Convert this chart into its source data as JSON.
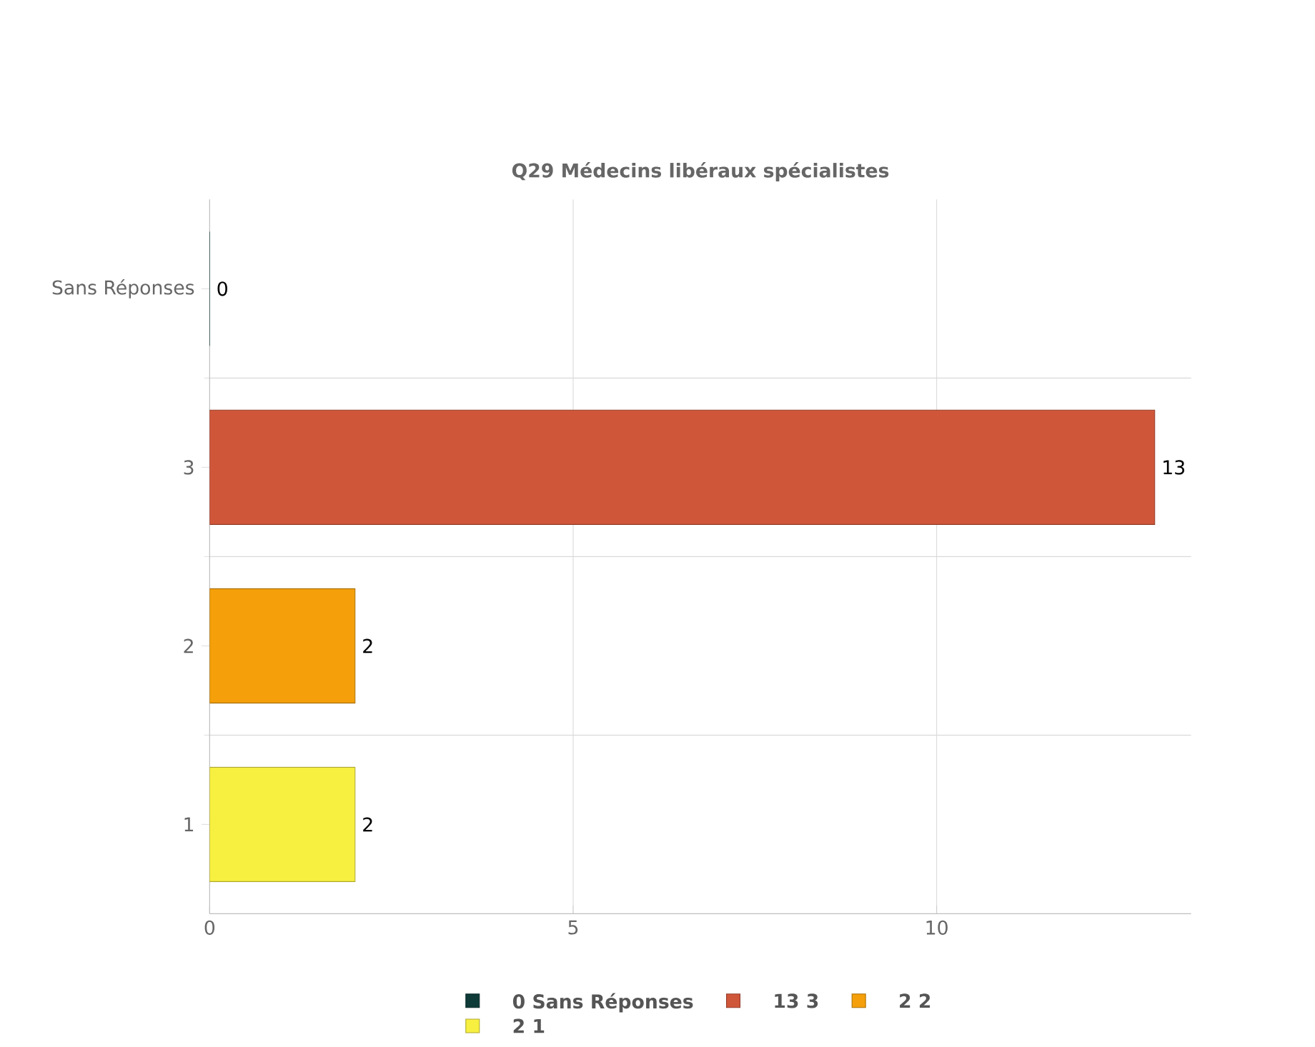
{
  "chart_data": {
    "type": "bar",
    "orientation": "horizontal",
    "title": "Q29 Médecins libéraux spécialistes",
    "categories": [
      "Sans Réponses",
      "3",
      "2",
      "1"
    ],
    "series": [
      {
        "name": "0 Sans Réponses",
        "color": "#0e3b38",
        "values": [
          0,
          null,
          null,
          null
        ]
      },
      {
        "name": "13 3",
        "color": "#d0563a",
        "values": [
          null,
          13,
          null,
          null
        ]
      },
      {
        "name": "2 2",
        "color": "#f5a00a",
        "values": [
          null,
          null,
          2,
          null
        ]
      },
      {
        "name": "2 1",
        "color": "#f8f040",
        "values": [
          null,
          null,
          null,
          2
        ]
      }
    ],
    "xlim": [
      0,
      13.5
    ],
    "xticks": [
      0,
      5,
      10
    ],
    "grid": true,
    "data_labels": true,
    "legend": "bottom"
  }
}
